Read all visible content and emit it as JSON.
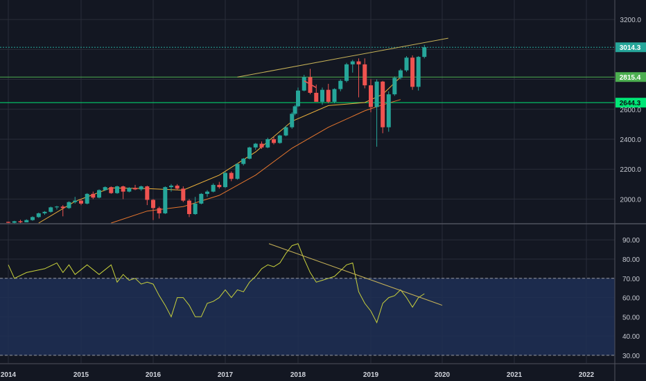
{
  "chart_data": [
    {
      "type": "candlestick",
      "interval": "monthly",
      "ylim": [
        1840,
        3330
      ],
      "y_ticks": [
        "2000.0",
        "2200.0",
        "2400.0",
        "2600.0",
        "3200.0"
      ],
      "price_tags": [
        {
          "label": "3014.3",
          "value": 3014.3,
          "color": "#26a69a"
        },
        {
          "label": "2815.4",
          "value": 2815.4,
          "color": "#4caf50"
        },
        {
          "label": "2644.3",
          "value": 2644.3,
          "color": "#00e676"
        }
      ],
      "horizontal_lines": [
        {
          "value": 3014.3,
          "color": "#26a69a",
          "style": "dotted"
        },
        {
          "value": 2815.4,
          "color": "#4caf50",
          "style": "solid"
        },
        {
          "value": 2644.3,
          "color": "#00e676",
          "style": "solid"
        }
      ],
      "trendline": {
        "from": [
          "2017-03",
          2815
        ],
        "to": [
          "2020-02",
          3075
        ],
        "color": "#c9b458"
      },
      "moving_averages": [
        {
          "color": "#f0b43c",
          "values": [
            [
              "2014-06",
              1840
            ],
            [
              "2014-12",
              1985
            ],
            [
              "2015-06",
              2075
            ],
            [
              "2015-12",
              2070
            ],
            [
              "2016-06",
              2060
            ],
            [
              "2016-12",
              2160
            ],
            [
              "2017-06",
              2315
            ],
            [
              "2017-12",
              2520
            ],
            [
              "2018-06",
              2625
            ],
            [
              "2018-12",
              2645
            ],
            [
              "2019-03",
              2700
            ],
            [
              "2019-06",
              2815
            ]
          ]
        },
        {
          "color": "#e8772e",
          "values": [
            [
              "2015-06",
              1840
            ],
            [
              "2015-12",
              1920
            ],
            [
              "2016-06",
              1950
            ],
            [
              "2016-12",
              2025
            ],
            [
              "2017-06",
              2160
            ],
            [
              "2017-12",
              2340
            ],
            [
              "2018-06",
              2480
            ],
            [
              "2018-12",
              2590
            ],
            [
              "2019-03",
              2630
            ],
            [
              "2019-06",
              2665
            ]
          ]
        }
      ],
      "candles": [
        [
          "2014-01",
          1848,
          1850,
          1840,
          1842
        ],
        [
          "2014-02",
          1842,
          1855,
          1838,
          1852
        ],
        [
          "2014-03",
          1852,
          1862,
          1840,
          1845
        ],
        [
          "2014-04",
          1845,
          1865,
          1845,
          1860
        ],
        [
          "2014-05",
          1860,
          1885,
          1855,
          1880
        ],
        [
          "2014-06",
          1880,
          1910,
          1875,
          1905
        ],
        [
          "2014-07",
          1905,
          1920,
          1895,
          1915
        ],
        [
          "2014-08",
          1915,
          1950,
          1910,
          1945
        ],
        [
          "2014-09",
          1945,
          1955,
          1930,
          1950
        ],
        [
          "2014-10",
          1950,
          1960,
          1885,
          1940
        ],
        [
          "2014-11",
          1940,
          1985,
          1935,
          1980
        ],
        [
          "2014-12",
          1980,
          2015,
          1970,
          1990
        ],
        [
          "2015-01",
          1990,
          2000,
          1960,
          1970
        ],
        [
          "2015-02",
          1970,
          2040,
          1965,
          2035
        ],
        [
          "2015-03",
          2035,
          2050,
          2000,
          2010
        ],
        [
          "2015-04",
          2010,
          2065,
          2005,
          2060
        ],
        [
          "2015-05",
          2060,
          2085,
          2055,
          2080
        ],
        [
          "2015-06",
          2080,
          2085,
          2035,
          2040
        ],
        [
          "2015-07",
          2040,
          2090,
          2035,
          2085
        ],
        [
          "2015-08",
          2085,
          2090,
          2000,
          2050
        ],
        [
          "2015-09",
          2050,
          2080,
          2045,
          2075
        ],
        [
          "2015-10",
          2075,
          2095,
          2060,
          2065
        ],
        [
          "2015-11",
          2065,
          2090,
          2055,
          2085
        ],
        [
          "2015-12",
          2085,
          2090,
          1960,
          1995
        ],
        [
          "2016-01",
          1995,
          2000,
          1860,
          1940
        ],
        [
          "2016-02",
          1940,
          1950,
          1870,
          1905
        ],
        [
          "2016-03",
          1905,
          2085,
          1900,
          2080
        ],
        [
          "2016-04",
          2080,
          2100,
          2050,
          2090
        ],
        [
          "2016-05",
          2090,
          2100,
          2060,
          2070
        ],
        [
          "2016-06",
          2070,
          2085,
          1980,
          1990
        ],
        [
          "2016-07",
          1990,
          2000,
          1880,
          1900
        ],
        [
          "2016-08",
          1900,
          2015,
          1895,
          1970
        ],
        [
          "2016-09",
          1970,
          2040,
          1965,
          2035
        ],
        [
          "2016-10",
          2035,
          2060,
          2015,
          2050
        ],
        [
          "2016-11",
          2050,
          2105,
          2045,
          2095
        ],
        [
          "2016-12",
          2095,
          2115,
          2070,
          2080
        ],
        [
          "2017-01",
          2080,
          2185,
          2075,
          2175
        ],
        [
          "2017-02",
          2175,
          2185,
          2120,
          2135
        ],
        [
          "2017-03",
          2135,
          2240,
          2130,
          2235
        ],
        [
          "2017-04",
          2235,
          2275,
          2225,
          2270
        ],
        [
          "2017-05",
          2270,
          2350,
          2265,
          2345
        ],
        [
          "2017-06",
          2345,
          2375,
          2330,
          2370
        ],
        [
          "2017-07",
          2370,
          2385,
          2335,
          2345
        ],
        [
          "2017-08",
          2345,
          2410,
          2340,
          2400
        ],
        [
          "2017-09",
          2400,
          2415,
          2365,
          2375
        ],
        [
          "2017-10",
          2375,
          2430,
          2370,
          2425
        ],
        [
          "2017-11",
          2425,
          2490,
          2420,
          2480
        ],
        [
          "2017-12",
          2480,
          2580,
          2470,
          2570
        ],
        [
          "2017-12b",
          2570,
          2630,
          2560,
          2620
        ],
        [
          "2018-01",
          2620,
          2745,
          2615,
          2725
        ],
        [
          "2018-02",
          2725,
          2830,
          2720,
          2815
        ],
        [
          "2018-03",
          2815,
          2870,
          2700,
          2710
        ],
        [
          "2018-04",
          2710,
          2765,
          2650,
          2650
        ],
        [
          "2018-05",
          2650,
          2745,
          2630,
          2730
        ],
        [
          "2018-06",
          2730,
          2770,
          2640,
          2650
        ],
        [
          "2018-07",
          2650,
          2740,
          2640,
          2735
        ],
        [
          "2018-08",
          2735,
          2800,
          2720,
          2790
        ],
        [
          "2018-09",
          2790,
          2910,
          2780,
          2900
        ],
        [
          "2018-10",
          2900,
          2930,
          2845,
          2920
        ],
        [
          "2018-11",
          2920,
          2940,
          2680,
          2900
        ],
        [
          "2018-12",
          2900,
          2940,
          2740,
          2760
        ],
        [
          "2019-01",
          2760,
          2800,
          2580,
          2615
        ],
        [
          "2019-02",
          2615,
          2800,
          2350,
          2785
        ],
        [
          "2019-03",
          2785,
          2790,
          2440,
          2480
        ],
        [
          "2019-04",
          2480,
          2720,
          2450,
          2700
        ],
        [
          "2019-05",
          2700,
          2820,
          2690,
          2810
        ],
        [
          "2019-06",
          2810,
          2870,
          2800,
          2860
        ],
        [
          "2019-07",
          2860,
          2955,
          2850,
          2945
        ],
        [
          "2019-08",
          2945,
          2960,
          2730,
          2750
        ],
        [
          "2019-09",
          2750,
          2955,
          2725,
          2950
        ],
        [
          "2019-10",
          2950,
          3030,
          2940,
          3014.3
        ]
      ]
    },
    {
      "type": "line",
      "indicator": "RSI",
      "ylim": [
        26,
        98
      ],
      "y_ticks": [
        "30.00",
        "40.00",
        "50.00",
        "60.00",
        "70.00",
        "80.00",
        "90.00"
      ],
      "band": {
        "upper": 70,
        "lower": 30,
        "color": "#1e2f55"
      },
      "series": [
        {
          "color": "#c9d23c",
          "values": [
            [
              "2014-01",
              77
            ],
            [
              "2014-02",
              70
            ],
            [
              "2014-04",
              73
            ],
            [
              "2014-07",
              75
            ],
            [
              "2014-09",
              78
            ],
            [
              "2014-10",
              73
            ],
            [
              "2014-11",
              77
            ],
            [
              "2014-12",
              72
            ],
            [
              "2015-02",
              77
            ],
            [
              "2015-04",
              72
            ],
            [
              "2015-06",
              77
            ],
            [
              "2015-07",
              68
            ],
            [
              "2015-08",
              72
            ],
            [
              "2015-09",
              69
            ],
            [
              "2015-10",
              70
            ],
            [
              "2015-11",
              67
            ],
            [
              "2015-12",
              68
            ],
            [
              "2016-01",
              67
            ],
            [
              "2016-02",
              61
            ],
            [
              "2016-03",
              56
            ],
            [
              "2016-04",
              50
            ],
            [
              "2016-05",
              60
            ],
            [
              "2016-06",
              60
            ],
            [
              "2016-07",
              56
            ],
            [
              "2016-08",
              50
            ],
            [
              "2016-09",
              50
            ],
            [
              "2016-10",
              57
            ],
            [
              "2016-11",
              58
            ],
            [
              "2016-12",
              60
            ],
            [
              "2017-01",
              64
            ],
            [
              "2017-02",
              60
            ],
            [
              "2017-03",
              64
            ],
            [
              "2017-04",
              63
            ],
            [
              "2017-05",
              68
            ],
            [
              "2017-06",
              71
            ],
            [
              "2017-07",
              75
            ],
            [
              "2017-08",
              77
            ],
            [
              "2017-09",
              76
            ],
            [
              "2017-10",
              78
            ],
            [
              "2017-11",
              83
            ],
            [
              "2017-12",
              87
            ],
            [
              "2018-01",
              88
            ],
            [
              "2018-02",
              80
            ],
            [
              "2018-03",
              73
            ],
            [
              "2018-04",
              68
            ],
            [
              "2018-05",
              69
            ],
            [
              "2018-06",
              70
            ],
            [
              "2018-07",
              71
            ],
            [
              "2018-08",
              74
            ],
            [
              "2018-09",
              77
            ],
            [
              "2018-10",
              78
            ],
            [
              "2018-11",
              63
            ],
            [
              "2018-12",
              57
            ],
            [
              "2019-01",
              53
            ],
            [
              "2019-02",
              47
            ],
            [
              "2019-03",
              57
            ],
            [
              "2019-04",
              60
            ],
            [
              "2019-05",
              61
            ],
            [
              "2019-06",
              64
            ],
            [
              "2019-07",
              60
            ],
            [
              "2019-08",
              55
            ],
            [
              "2019-09",
              60
            ],
            [
              "2019-10",
              62
            ]
          ]
        }
      ],
      "trendline": {
        "from": [
          "2018-01",
          88
        ],
        "to": [
          "2020-01",
          56
        ],
        "color": "#c9b458"
      }
    }
  ],
  "x_axis": {
    "labels": [
      "2014",
      "2015",
      "2016",
      "2017",
      "2018",
      "2019",
      "2020",
      "2021",
      "2022"
    ]
  },
  "colors": {
    "background": "#131722",
    "grid": "#2a2e39",
    "up": "#26a69a",
    "down": "#ef5350",
    "text": "#c8cbd3"
  }
}
